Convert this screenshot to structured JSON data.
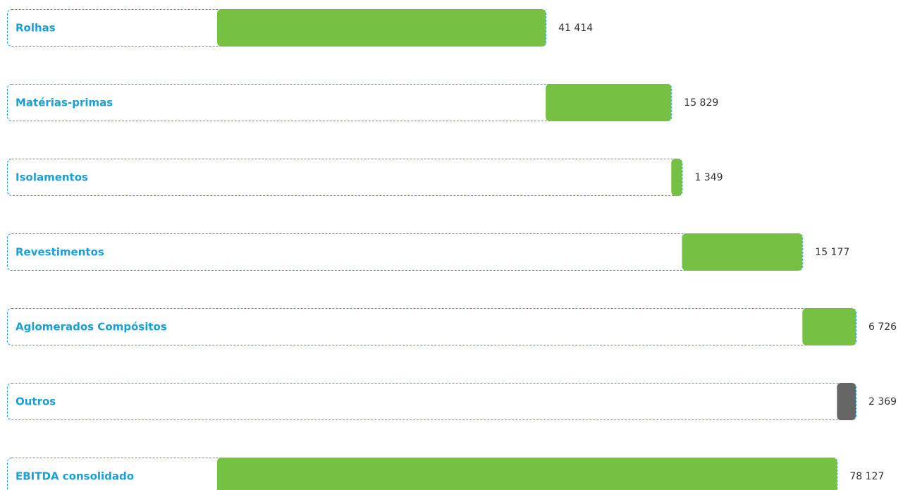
{
  "chart_data": {
    "type": "waterfall",
    "categories": [
      "Rolhas",
      "Matérias-primas",
      "Isolamentos",
      "Revestimentos",
      "Aglomerados Compósitos",
      "Outros",
      "EBITDA consolidado"
    ],
    "values": [
      41414,
      15829,
      1349,
      15177,
      6726,
      -2369,
      78127
    ],
    "value_labels": [
      "41 414",
      "15 829",
      "1 349",
      "15 177",
      "6 726",
      "2 369",
      "78 127"
    ],
    "color": "#76c043",
    "negative_color": "#666666",
    "total_last": true,
    "box_color": "#1a9fd9"
  }
}
